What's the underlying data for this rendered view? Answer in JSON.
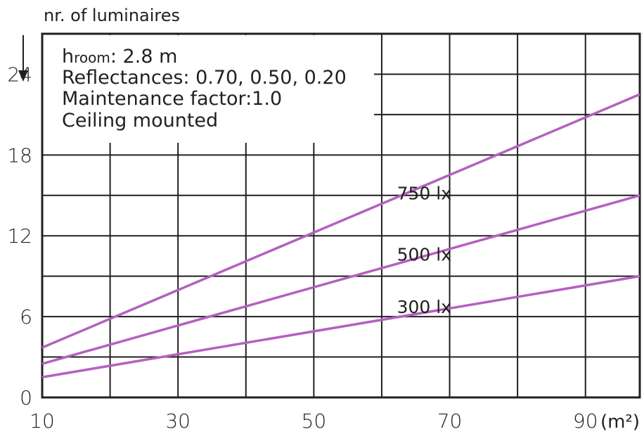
{
  "chart_data": {
    "type": "line",
    "ylabel": "nr. of luminaires",
    "xunit": "(m²)",
    "xlim": [
      10,
      98
    ],
    "ylim": [
      0,
      27
    ],
    "x_ticks": [
      10,
      30,
      50,
      70,
      90
    ],
    "y_ticks": [
      0,
      6,
      12,
      18,
      24
    ],
    "info": {
      "room_prefix": "h",
      "room_sub": "room",
      "room_value": ": 2.8 m",
      "reflectances": "Reflectances: 0.70, 0.50, 0.20",
      "maintenance": "Maintenance factor:1.0",
      "mounting": "Ceiling mounted"
    },
    "series": [
      {
        "name": "750 lx",
        "x": [
          10,
          98
        ],
        "y": [
          3.7,
          22.5
        ]
      },
      {
        "name": "500 lx",
        "x": [
          10,
          98
        ],
        "y": [
          2.5,
          15
        ]
      },
      {
        "name": "300 lx",
        "x": [
          10,
          98
        ],
        "y": [
          1.5,
          9
        ]
      }
    ],
    "line_color": "#b560c0",
    "grid": true
  }
}
